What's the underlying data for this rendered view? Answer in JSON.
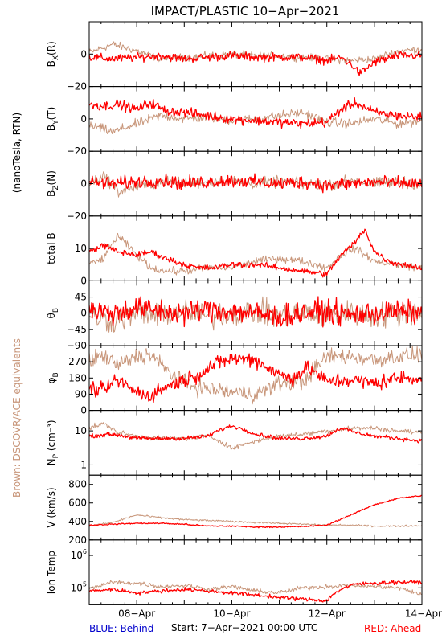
{
  "title": "IMPACT/PLASTIC   10−Apr−2021",
  "left_label_mag": "(nanoTesla, RTN)",
  "left_label_brown": "Brown: DSCOVR/ACE equivalents",
  "footer": {
    "blue": "BLUE: Behind",
    "start": "Start:   7−Apr−2021 00:00 UTC",
    "red": "RED: Ahead"
  },
  "colors": {
    "red": "#ff0000",
    "brown": "#c8967a",
    "blue": "#0000cc",
    "frame": "#000000"
  },
  "chart_data": {
    "type": "line",
    "x_range_days": [
      7.0,
      14.0
    ],
    "x_ticks": [
      {
        "day": 8,
        "label": "08−Apr"
      },
      {
        "day": 10,
        "label": "10−Apr"
      },
      {
        "day": 12,
        "label": "12−Apr"
      },
      {
        "day": 14,
        "label": "14−Apr"
      }
    ],
    "panels": [
      {
        "id": "bx",
        "ylabel": "B",
        "ysub": "X",
        "ysuffix": "(R)",
        "ylim": [
          -20,
          20
        ],
        "log": false,
        "yticks": [
          {
            "v": 0,
            "label": "0"
          },
          {
            "v": -20,
            "label": "−20"
          }
        ],
        "series": [
          {
            "color": "red",
            "noise": 2.2,
            "x": [
              7.0,
              7.5,
              8.0,
              8.5,
              9.0,
              9.5,
              10.0,
              10.5,
              11.0,
              11.5,
              12.0,
              12.3,
              12.5,
              12.7,
              13.0,
              13.5,
              14.0
            ],
            "y": [
              -2,
              -3,
              -2,
              -1,
              -3,
              -2,
              -1,
              -2,
              -2,
              -2,
              -4,
              -2,
              -6,
              -12,
              -5,
              -1,
              -1
            ]
          },
          {
            "color": "brown",
            "noise": 2.0,
            "x": [
              7.0,
              7.5,
              8.0,
              8.5,
              9.0,
              9.5,
              10.0,
              10.5,
              11.0,
              11.5,
              12.0,
              12.5,
              13.0,
              13.5,
              14.0
            ],
            "y": [
              1,
              6,
              2,
              -3,
              -2,
              -1,
              0,
              -1,
              -1,
              -2,
              -3,
              -4,
              -3,
              2,
              3
            ]
          }
        ]
      },
      {
        "id": "by",
        "ylabel": "B",
        "ysub": "Y",
        "ysuffix": "(T)",
        "ylim": [
          -20,
          20
        ],
        "log": false,
        "yticks": [
          {
            "v": 0,
            "label": "0"
          },
          {
            "v": -20,
            "label": "−20"
          }
        ],
        "series": [
          {
            "color": "red",
            "noise": 2.5,
            "x": [
              7.0,
              7.3,
              7.6,
              8.0,
              8.3,
              8.6,
              9.0,
              9.5,
              10.0,
              10.5,
              11.0,
              11.5,
              12.0,
              12.3,
              12.6,
              13.0,
              13.5,
              14.0
            ],
            "y": [
              9,
              8,
              9,
              6,
              10,
              5,
              4,
              2,
              0,
              -1,
              -2,
              -3,
              -2,
              6,
              10,
              4,
              2,
              1
            ]
          },
          {
            "color": "brown",
            "noise": 2.5,
            "x": [
              7.0,
              7.5,
              8.0,
              8.5,
              9.0,
              9.5,
              10.0,
              10.5,
              11.0,
              11.5,
              12.0,
              12.5,
              13.0,
              13.5,
              14.0
            ],
            "y": [
              -4,
              -8,
              -3,
              2,
              0,
              1,
              -1,
              0,
              2,
              4,
              -2,
              -3,
              0,
              -3,
              -1
            ]
          }
        ]
      },
      {
        "id": "bz",
        "ylabel": "B",
        "ysub": "Z",
        "ysuffix": "(N)",
        "ylim": [
          -20,
          20
        ],
        "log": false,
        "yticks": [
          {
            "v": 0,
            "label": "0"
          },
          {
            "v": -20,
            "label": "−20"
          }
        ],
        "series": [
          {
            "color": "red",
            "noise": 3.5,
            "x": [
              7.0,
              7.5,
              8.0,
              8.5,
              9.0,
              9.5,
              10.0,
              10.5,
              11.0,
              11.5,
              12.0,
              12.5,
              13.0,
              13.5,
              14.0
            ],
            "y": [
              1,
              0,
              1,
              2,
              0,
              1,
              2,
              1,
              0,
              1,
              -1,
              0,
              1,
              0,
              0
            ]
          },
          {
            "color": "brown",
            "noise": 3.0,
            "x": [
              7.0,
              7.3,
              7.6,
              8.0,
              8.5,
              9.0,
              9.5,
              10.0,
              10.5,
              11.0,
              11.5,
              12.0,
              12.5,
              13.0,
              13.5,
              14.0
            ],
            "y": [
              0,
              5,
              -5,
              -2,
              1,
              0,
              1,
              2,
              0,
              1,
              0,
              -1,
              2,
              0,
              1,
              0
            ]
          }
        ]
      },
      {
        "id": "btot",
        "ylabel": "total B",
        "ysub": "",
        "ysuffix": "",
        "ylim": [
          0,
          20
        ],
        "log": false,
        "yticks": [
          {
            "v": 10,
            "label": "10"
          },
          {
            "v": 0,
            "label": "0"
          }
        ],
        "series": [
          {
            "color": "red",
            "noise": 0.8,
            "x": [
              7.0,
              7.3,
              7.6,
              8.0,
              8.3,
              8.6,
              9.0,
              9.3,
              9.6,
              10.0,
              10.5,
              11.0,
              11.5,
              12.0,
              12.3,
              12.6,
              12.8,
              13.0,
              13.3,
              13.6,
              14.0
            ],
            "y": [
              9,
              11,
              9,
              8,
              9,
              7,
              5,
              4,
              4,
              5,
              5,
              4,
              3,
              2,
              8,
              12,
              16,
              9,
              6,
              5,
              4
            ]
          },
          {
            "color": "brown",
            "noise": 1.0,
            "x": [
              7.0,
              7.3,
              7.6,
              8.0,
              8.3,
              8.6,
              9.0,
              9.5,
              10.0,
              10.5,
              11.0,
              11.5,
              12.0,
              12.3,
              12.6,
              13.0,
              13.5,
              14.0
            ],
            "y": [
              5,
              7,
              14,
              8,
              4,
              3,
              3,
              4,
              4,
              6,
              7,
              6,
              4,
              8,
              10,
              6,
              5,
              4
            ]
          }
        ]
      },
      {
        "id": "theta",
        "ylabel": "θ",
        "ysub": "B",
        "ysuffix": "",
        "ylim": [
          -90,
          90
        ],
        "log": false,
        "yticks": [
          {
            "v": 45,
            "label": "45"
          },
          {
            "v": 0,
            "label": "0"
          },
          {
            "v": -45,
            "label": "−45"
          },
          {
            "v": -90,
            "label": "−90"
          }
        ],
        "series": [
          {
            "color": "red",
            "noise": 28,
            "x": [
              7.0,
              7.5,
              8.0,
              8.5,
              9.0,
              9.5,
              10.0,
              10.5,
              11.0,
              11.5,
              12.0,
              12.5,
              13.0,
              13.5,
              14.0
            ],
            "y": [
              10,
              0,
              15,
              5,
              0,
              10,
              5,
              0,
              -10,
              0,
              5,
              -5,
              0,
              5,
              0
            ]
          },
          {
            "color": "brown",
            "noise": 30,
            "x": [
              7.0,
              7.5,
              8.0,
              8.5,
              9.0,
              9.5,
              10.0,
              10.5,
              11.0,
              11.5,
              12.0,
              12.5,
              13.0,
              13.5,
              14.0
            ],
            "y": [
              -10,
              -20,
              0,
              -5,
              5,
              -10,
              0,
              5,
              -10,
              0,
              -5,
              0,
              -10,
              0,
              5
            ]
          }
        ]
      },
      {
        "id": "phi",
        "ylabel": "φ",
        "ysub": "B",
        "ysuffix": "",
        "ylim": [
          0,
          360
        ],
        "log": false,
        "yticks": [
          {
            "v": 270,
            "label": "270"
          },
          {
            "v": 180,
            "label": "180"
          },
          {
            "v": 90,
            "label": "90"
          },
          {
            "v": 0,
            "label": "0"
          }
        ],
        "series": [
          {
            "color": "red",
            "noise": 35,
            "x": [
              7.0,
              7.3,
              7.6,
              8.0,
              8.3,
              8.6,
              9.0,
              9.3,
              9.6,
              10.0,
              10.5,
              11.0,
              11.3,
              11.6,
              12.0,
              12.5,
              13.0,
              13.5,
              14.0
            ],
            "y": [
              120,
              110,
              170,
              100,
              80,
              130,
              170,
              200,
              250,
              290,
              280,
              200,
              180,
              240,
              160,
              170,
              150,
              180,
              180
            ]
          },
          {
            "color": "brown",
            "noise": 40,
            "x": [
              7.0,
              7.3,
              7.6,
              8.0,
              8.3,
              8.6,
              9.0,
              9.5,
              10.0,
              10.5,
              11.0,
              11.5,
              12.0,
              12.5,
              13.0,
              13.5,
              14.0
            ],
            "y": [
              280,
              300,
              250,
              300,
              310,
              230,
              150,
              120,
              100,
              90,
              150,
              160,
              300,
              300,
              280,
              300,
              310
            ]
          }
        ]
      },
      {
        "id": "np",
        "ylabel": "N",
        "ysub": "P",
        "ysuffix": " (cm⁻³)",
        "ylim": [
          0.5,
          40
        ],
        "log": true,
        "yticks": [
          {
            "v": 10,
            "label": "10"
          },
          {
            "v": 1,
            "label": "1"
          }
        ],
        "series": [
          {
            "color": "red",
            "noise": 0.05,
            "x": [
              7.0,
              7.5,
              8.0,
              8.5,
              9.0,
              9.5,
              10.0,
              10.5,
              11.0,
              11.5,
              12.0,
              12.3,
              12.6,
              13.0,
              13.5,
              14.0
            ],
            "y": [
              7,
              8,
              6,
              6,
              6,
              7,
              14,
              8,
              6,
              6,
              7,
              12,
              9,
              7,
              6,
              5
            ]
          },
          {
            "color": "brown",
            "noise": 0.06,
            "x": [
              7.0,
              7.3,
              7.6,
              8.0,
              8.5,
              9.0,
              9.5,
              10.0,
              10.5,
              11.0,
              11.5,
              12.0,
              12.5,
              13.0,
              13.5,
              14.0
            ],
            "y": [
              12,
              16,
              9,
              7,
              6,
              6,
              7,
              3,
              5,
              7,
              8,
              10,
              12,
              12,
              10,
              9
            ]
          }
        ]
      },
      {
        "id": "v",
        "ylabel": "V (km/s)",
        "ysub": "",
        "ysuffix": "",
        "ylim": [
          200,
          900
        ],
        "log": false,
        "yticks": [
          {
            "v": 800,
            "label": "800"
          },
          {
            "v": 600,
            "label": "600"
          },
          {
            "v": 400,
            "label": "400"
          },
          {
            "v": 200,
            "label": "200"
          }
        ],
        "series": [
          {
            "color": "red",
            "noise": 6,
            "x": [
              7.0,
              7.5,
              8.0,
              8.5,
              9.0,
              9.5,
              10.0,
              10.5,
              11.0,
              11.5,
              12.0,
              12.5,
              13.0,
              13.5,
              14.0
            ],
            "y": [
              360,
              370,
              380,
              380,
              370,
              350,
              350,
              340,
              340,
              345,
              360,
              470,
              580,
              650,
              680
            ]
          },
          {
            "color": "brown",
            "noise": 8,
            "x": [
              7.0,
              7.5,
              8.0,
              8.5,
              9.0,
              9.5,
              10.0,
              10.5,
              11.0,
              11.5,
              12.0,
              12.5,
              13.0,
              13.5,
              14.0
            ],
            "y": [
              350,
              390,
              470,
              440,
              420,
              410,
              400,
              390,
              380,
              370,
              360,
              360,
              350,
              350,
              355
            ]
          }
        ]
      },
      {
        "id": "temp",
        "ylabel": "Ion Temp",
        "ysub": "",
        "ysuffix": "",
        "ylim": [
          30000,
          3000000
        ],
        "log": true,
        "yticks": [
          {
            "v": 1000000,
            "label": "10",
            "sup": "6"
          },
          {
            "v": 100000,
            "label": "10",
            "sup": "5"
          }
        ],
        "series": [
          {
            "color": "red",
            "noise": 0.05,
            "x": [
              7.0,
              7.5,
              8.0,
              8.5,
              9.0,
              9.5,
              10.0,
              10.5,
              11.0,
              11.5,
              12.0,
              12.3,
              12.6,
              13.0,
              13.5,
              14.0
            ],
            "y": [
              80000,
              90000,
              70000,
              80000,
              90000,
              80000,
              70000,
              60000,
              50000,
              45000,
              40000,
              90000,
              130000,
              140000,
              150000,
              150000
            ]
          },
          {
            "color": "brown",
            "noise": 0.06,
            "x": [
              7.0,
              7.5,
              8.0,
              8.5,
              9.0,
              9.5,
              10.0,
              10.5,
              11.0,
              11.5,
              12.0,
              12.5,
              13.0,
              13.5,
              14.0
            ],
            "y": [
              90000,
              150000,
              140000,
              110000,
              120000,
              90000,
              110000,
              80000,
              70000,
              100000,
              110000,
              120000,
              110000,
              100000,
              60000
            ]
          }
        ]
      }
    ]
  }
}
